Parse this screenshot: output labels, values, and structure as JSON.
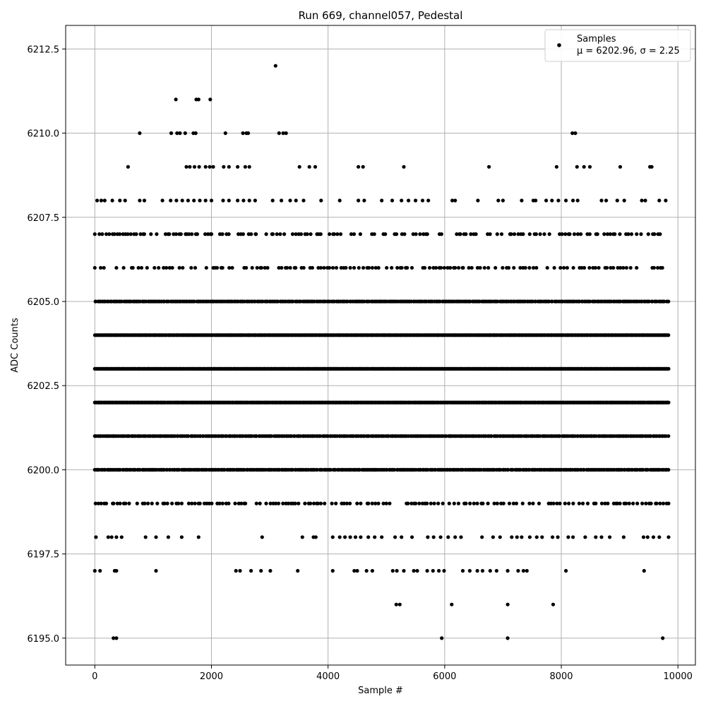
{
  "chart_data": {
    "type": "scatter",
    "title": "Run 669, channel057, Pedestal",
    "xlabel": "Sample #",
    "ylabel": "ADC Counts",
    "xlim": [
      -500,
      10300
    ],
    "ylim": [
      6194.2,
      6213.2
    ],
    "x_ticks": [
      0,
      2000,
      4000,
      6000,
      8000,
      10000
    ],
    "x_tick_labels": [
      "0",
      "2000",
      "4000",
      "6000",
      "8000",
      "10000"
    ],
    "y_ticks": [
      6195.0,
      6197.5,
      6200.0,
      6202.5,
      6205.0,
      6207.5,
      6210.0,
      6212.5
    ],
    "y_tick_labels": [
      "6195.0",
      "6197.5",
      "6200.0",
      "6202.5",
      "6205.0",
      "6207.5",
      "6210.0",
      "6212.5"
    ],
    "grid": true,
    "legend_placement": "top-right",
    "series": [
      {
        "name": "Samples",
        "stats_label": "μ = 6202.96, σ = 2.25",
        "color": "#000000",
        "mu": 6202.96,
        "sigma": 2.25,
        "x_range": [
          0,
          9840
        ],
        "dense_levels": [
          6199,
          6200,
          6201,
          6202,
          6203,
          6204,
          6205,
          6206,
          6207
        ],
        "points": [
          [
            320,
            6195
          ],
          [
            370,
            6195
          ],
          [
            5950,
            6195
          ],
          [
            7080,
            6195
          ],
          [
            9740,
            6195
          ],
          [
            5170,
            6196
          ],
          [
            5230,
            6196
          ],
          [
            6120,
            6196
          ],
          [
            7080,
            6196
          ],
          [
            7860,
            6196
          ],
          [
            0,
            6197
          ],
          [
            90,
            6197
          ],
          [
            340,
            6197
          ],
          [
            370,
            6197
          ],
          [
            1050,
            6197
          ],
          [
            2420,
            6197
          ],
          [
            2490,
            6197
          ],
          [
            2680,
            6197
          ],
          [
            2850,
            6197
          ],
          [
            3010,
            6197
          ],
          [
            3480,
            6197
          ],
          [
            4080,
            6197
          ],
          [
            4450,
            6197
          ],
          [
            4500,
            6197
          ],
          [
            4660,
            6197
          ],
          [
            4760,
            6197
          ],
          [
            5110,
            6197
          ],
          [
            5180,
            6197
          ],
          [
            5300,
            6197
          ],
          [
            5470,
            6197
          ],
          [
            5530,
            6197
          ],
          [
            5700,
            6197
          ],
          [
            5800,
            6197
          ],
          [
            5900,
            6197
          ],
          [
            5990,
            6197
          ],
          [
            6310,
            6197
          ],
          [
            6430,
            6197
          ],
          [
            6560,
            6197
          ],
          [
            6650,
            6197
          ],
          [
            6780,
            6197
          ],
          [
            6890,
            6197
          ],
          [
            7080,
            6197
          ],
          [
            7260,
            6197
          ],
          [
            7350,
            6197
          ],
          [
            7410,
            6197
          ],
          [
            8080,
            6197
          ],
          [
            9420,
            6197
          ],
          [
            20,
            6198
          ],
          [
            230,
            6198
          ],
          [
            290,
            6198
          ],
          [
            370,
            6198
          ],
          [
            460,
            6198
          ],
          [
            870,
            6198
          ],
          [
            1050,
            6198
          ],
          [
            1260,
            6198
          ],
          [
            1490,
            6198
          ],
          [
            1780,
            6198
          ],
          [
            2870,
            6198
          ],
          [
            3560,
            6198
          ],
          [
            3750,
            6198
          ],
          [
            3790,
            6198
          ],
          [
            4080,
            6198
          ],
          [
            4200,
            6198
          ],
          [
            4290,
            6198
          ],
          [
            4380,
            6198
          ],
          [
            4470,
            6198
          ],
          [
            4560,
            6198
          ],
          [
            4690,
            6198
          ],
          [
            4800,
            6198
          ],
          [
            4920,
            6198
          ],
          [
            5150,
            6198
          ],
          [
            5260,
            6198
          ],
          [
            5440,
            6198
          ],
          [
            5710,
            6198
          ],
          [
            5810,
            6198
          ],
          [
            5930,
            6198
          ],
          [
            6060,
            6198
          ],
          [
            6180,
            6198
          ],
          [
            6280,
            6198
          ],
          [
            6640,
            6198
          ],
          [
            6830,
            6198
          ],
          [
            6950,
            6198
          ],
          [
            7150,
            6198
          ],
          [
            7240,
            6198
          ],
          [
            7320,
            6198
          ],
          [
            7460,
            6198
          ],
          [
            7580,
            6198
          ],
          [
            7670,
            6198
          ],
          [
            7850,
            6198
          ],
          [
            7940,
            6198
          ],
          [
            8120,
            6198
          ],
          [
            8200,
            6198
          ],
          [
            8410,
            6198
          ],
          [
            8590,
            6198
          ],
          [
            8690,
            6198
          ],
          [
            8830,
            6198
          ],
          [
            9070,
            6198
          ],
          [
            9410,
            6198
          ],
          [
            9480,
            6198
          ],
          [
            9580,
            6198
          ],
          [
            9680,
            6198
          ],
          [
            9840,
            6198
          ],
          [
            3100,
            6212
          ],
          [
            1390,
            6211
          ],
          [
            1740,
            6211
          ],
          [
            1780,
            6211
          ],
          [
            1980,
            6211
          ],
          [
            770,
            6210
          ],
          [
            1310,
            6210
          ],
          [
            1410,
            6210
          ],
          [
            1460,
            6210
          ],
          [
            1550,
            6210
          ],
          [
            1690,
            6210
          ],
          [
            1730,
            6210
          ],
          [
            2240,
            6210
          ],
          [
            2540,
            6210
          ],
          [
            2600,
            6210
          ],
          [
            2630,
            6210
          ],
          [
            3160,
            6210
          ],
          [
            3230,
            6210
          ],
          [
            3280,
            6210
          ],
          [
            8190,
            6210
          ],
          [
            8240,
            6210
          ],
          [
            570,
            6209
          ],
          [
            1570,
            6209
          ],
          [
            1630,
            6209
          ],
          [
            1710,
            6209
          ],
          [
            1790,
            6209
          ],
          [
            1900,
            6209
          ],
          [
            1970,
            6209
          ],
          [
            2030,
            6209
          ],
          [
            2210,
            6209
          ],
          [
            2300,
            6209
          ],
          [
            2450,
            6209
          ],
          [
            2580,
            6209
          ],
          [
            2650,
            6209
          ],
          [
            3510,
            6209
          ],
          [
            3680,
            6209
          ],
          [
            3780,
            6209
          ],
          [
            4520,
            6209
          ],
          [
            4600,
            6209
          ],
          [
            5300,
            6209
          ],
          [
            6760,
            6209
          ],
          [
            7920,
            6209
          ],
          [
            8270,
            6209
          ],
          [
            8390,
            6209
          ],
          [
            8490,
            6209
          ],
          [
            9010,
            6209
          ],
          [
            9520,
            6209
          ],
          [
            9550,
            6209
          ],
          [
            40,
            6208
          ],
          [
            110,
            6208
          ],
          [
            170,
            6208
          ],
          [
            300,
            6208
          ],
          [
            430,
            6208
          ],
          [
            520,
            6208
          ],
          [
            770,
            6208
          ],
          [
            850,
            6208
          ],
          [
            1160,
            6208
          ],
          [
            1300,
            6208
          ],
          [
            1400,
            6208
          ],
          [
            1500,
            6208
          ],
          [
            1600,
            6208
          ],
          [
            1700,
            6208
          ],
          [
            1800,
            6208
          ],
          [
            1900,
            6208
          ],
          [
            2000,
            6208
          ],
          [
            2200,
            6208
          ],
          [
            2300,
            6208
          ],
          [
            2450,
            6208
          ],
          [
            2550,
            6208
          ],
          [
            2650,
            6208
          ],
          [
            2750,
            6208
          ],
          [
            3050,
            6208
          ],
          [
            3200,
            6208
          ],
          [
            3350,
            6208
          ],
          [
            3450,
            6208
          ],
          [
            3580,
            6208
          ],
          [
            3880,
            6208
          ],
          [
            4200,
            6208
          ],
          [
            4520,
            6208
          ],
          [
            4620,
            6208
          ],
          [
            4920,
            6208
          ],
          [
            5100,
            6208
          ],
          [
            5260,
            6208
          ],
          [
            5380,
            6208
          ],
          [
            5500,
            6208
          ],
          [
            5620,
            6208
          ],
          [
            5720,
            6208
          ],
          [
            6130,
            6208
          ],
          [
            6180,
            6208
          ],
          [
            6570,
            6208
          ],
          [
            6920,
            6208
          ],
          [
            7000,
            6208
          ],
          [
            7320,
            6208
          ],
          [
            7520,
            6208
          ],
          [
            7560,
            6208
          ],
          [
            7740,
            6208
          ],
          [
            7840,
            6208
          ],
          [
            7950,
            6208
          ],
          [
            8080,
            6208
          ],
          [
            8200,
            6208
          ],
          [
            8280,
            6208
          ],
          [
            8690,
            6208
          ],
          [
            8770,
            6208
          ],
          [
            8960,
            6208
          ],
          [
            9080,
            6208
          ],
          [
            9380,
            6208
          ],
          [
            9440,
            6208
          ],
          [
            9680,
            6208
          ],
          [
            9790,
            6208
          ]
        ]
      }
    ]
  }
}
